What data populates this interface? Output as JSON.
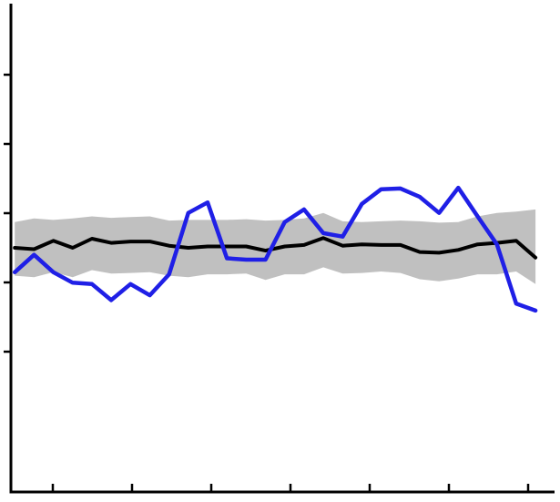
{
  "chart_data": {
    "type": "line",
    "title": "",
    "xlabel": "",
    "ylabel": "",
    "x": [
      1,
      2,
      3,
      4,
      5,
      6,
      7,
      8,
      9,
      10,
      11,
      12,
      13,
      14,
      15,
      16,
      17,
      18,
      19,
      20,
      21,
      22,
      23,
      24,
      25,
      26,
      27,
      28
    ],
    "xlim": [
      0.8,
      28.8
    ],
    "ylim": [
      -3.5,
      3.5
    ],
    "x_tick_count": 7,
    "y_tick_count": 5,
    "tick_labels_visible": false,
    "grid": false,
    "series": [
      {
        "values": [
          0.0,
          -0.02,
          0.1,
          0.0,
          0.13,
          0.07,
          0.09,
          0.09,
          0.03,
          0.0,
          0.02,
          0.02,
          0.02,
          -0.04,
          0.02,
          0.04,
          0.14,
          0.03,
          0.05,
          0.04,
          0.04,
          -0.06,
          -0.07,
          -0.03,
          0.05,
          0.07,
          0.1,
          -0.14
        ],
        "band_upper": [
          0.37,
          0.42,
          0.4,
          0.42,
          0.45,
          0.43,
          0.44,
          0.45,
          0.39,
          0.4,
          0.4,
          0.4,
          0.41,
          0.39,
          0.4,
          0.42,
          0.5,
          0.38,
          0.37,
          0.38,
          0.39,
          0.38,
          0.36,
          0.37,
          0.45,
          0.5,
          0.52,
          0.55
        ],
        "band_lower": [
          -0.4,
          -0.42,
          -0.35,
          -0.42,
          -0.32,
          -0.37,
          -0.36,
          -0.35,
          -0.4,
          -0.42,
          -0.38,
          -0.38,
          -0.37,
          -0.46,
          -0.38,
          -0.38,
          -0.28,
          -0.37,
          -0.36,
          -0.34,
          -0.36,
          -0.45,
          -0.48,
          -0.44,
          -0.38,
          -0.38,
          -0.34,
          -0.52
        ],
        "color": "#000000",
        "band_color": "#c0c0c0"
      },
      {
        "values": [
          -0.35,
          -0.1,
          -0.35,
          -0.5,
          -0.52,
          -0.75,
          -0.52,
          -0.68,
          -0.38,
          0.5,
          0.65,
          -0.15,
          -0.17,
          -0.17,
          0.37,
          0.55,
          0.21,
          0.16,
          0.63,
          0.84,
          0.85,
          0.73,
          0.5,
          0.86,
          0.45,
          0.05,
          -0.8,
          -0.9
        ],
        "color": "#1f1fe6"
      }
    ]
  }
}
